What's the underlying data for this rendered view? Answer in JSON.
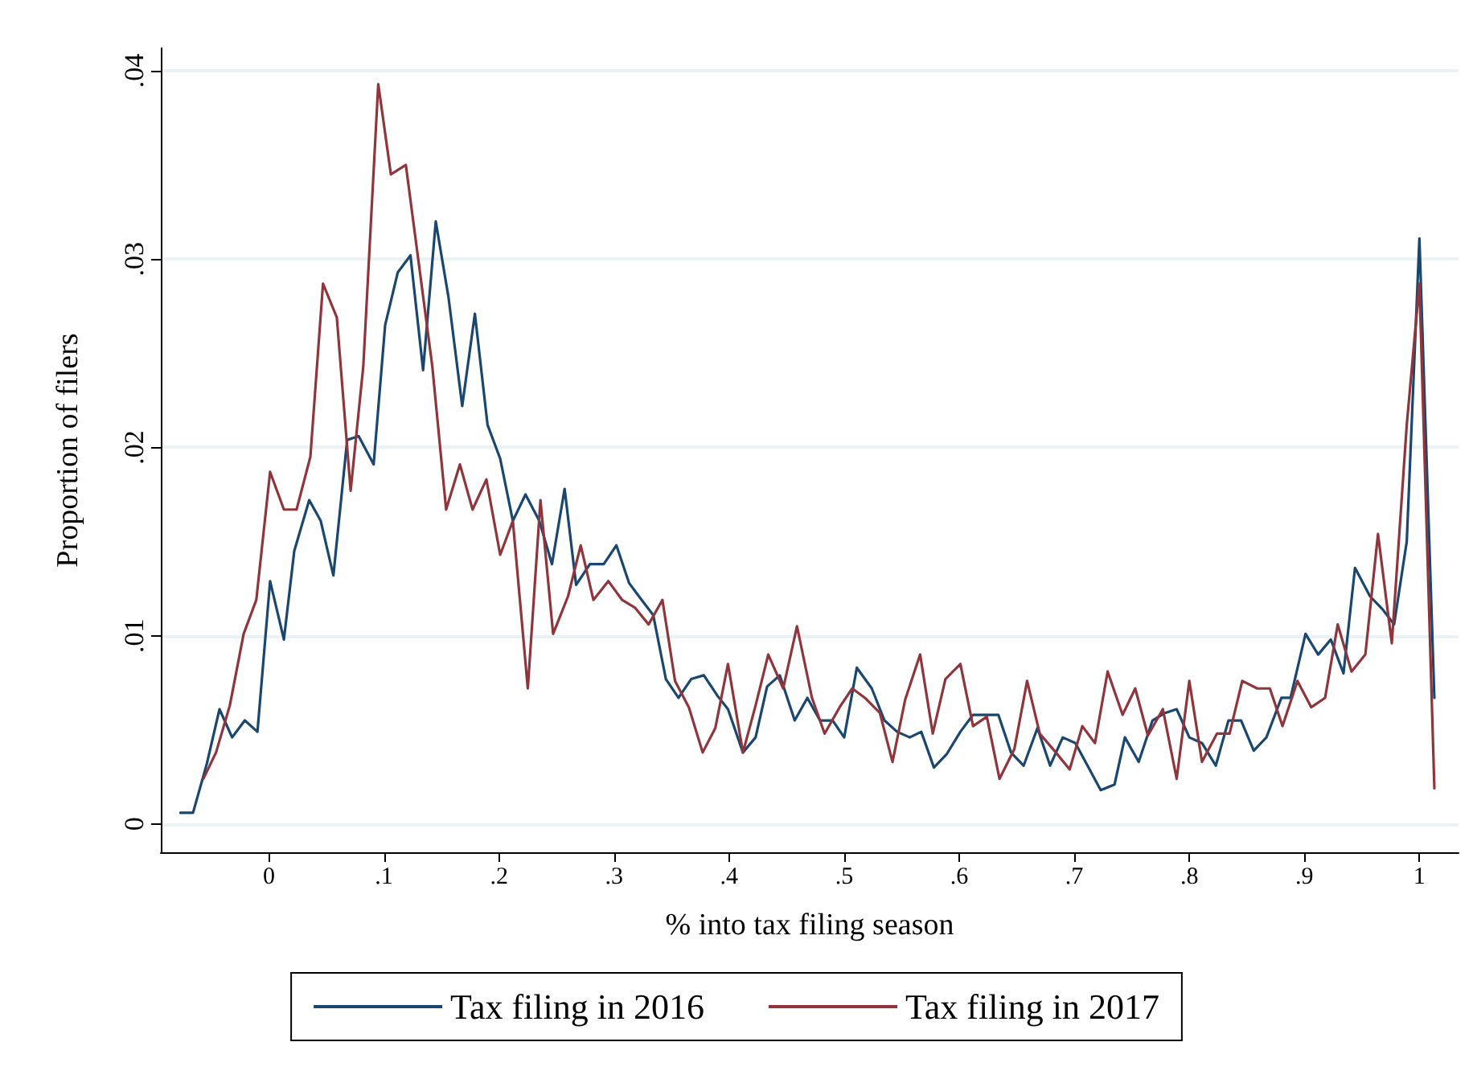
{
  "chart_data": {
    "type": "line",
    "xlabel": "% into tax filing season",
    "ylabel": "Proportion of filers",
    "xlim": [
      -0.094,
      1.034
    ],
    "xticks": [
      {
        "value": 0,
        "label": "0"
      },
      {
        "value": 0.1,
        "label": ".1"
      },
      {
        "value": 0.2,
        "label": ".2"
      },
      {
        "value": 0.3,
        "label": ".3"
      },
      {
        "value": 0.4,
        "label": ".4"
      },
      {
        "value": 0.5,
        "label": ".5"
      },
      {
        "value": 0.6,
        "label": ".6"
      },
      {
        "value": 0.7,
        "label": ".7"
      },
      {
        "value": 0.8,
        "label": ".8"
      },
      {
        "value": 0.9,
        "label": ".9"
      },
      {
        "value": 1,
        "label": "1"
      }
    ],
    "ylim": [
      -0.0015,
      0.0412
    ],
    "yticks": [
      {
        "value": 0,
        "label": "0"
      },
      {
        "value": 0.01,
        "label": ".01"
      },
      {
        "value": 0.02,
        "label": ".02"
      },
      {
        "value": 0.03,
        "label": ".03"
      },
      {
        "value": 0.04,
        "label": ".04"
      }
    ],
    "grid": "y",
    "legend": "bottom",
    "marker": "none",
    "line_style": "solid",
    "series": [
      {
        "name": "Tax filing in 2016",
        "color": "#1a476f",
        "x": [
          -0.077,
          -0.066,
          -0.054,
          -0.043,
          -0.032,
          -0.021,
          -0.01,
          0.001,
          0.013,
          0.022,
          0.035,
          0.045,
          0.056,
          0.068,
          0.078,
          0.091,
          0.101,
          0.112,
          0.123,
          0.134,
          0.145,
          0.156,
          0.168,
          0.179,
          0.19,
          0.201,
          0.212,
          0.223,
          0.235,
          0.246,
          0.257,
          0.267,
          0.279,
          0.291,
          0.302,
          0.313,
          0.324,
          0.334,
          0.345,
          0.356,
          0.367,
          0.378,
          0.39,
          0.399,
          0.412,
          0.423,
          0.433,
          0.444,
          0.457,
          0.468,
          0.479,
          0.49,
          0.5,
          0.511,
          0.524,
          0.535,
          0.546,
          0.557,
          0.567,
          0.578,
          0.589,
          0.601,
          0.612,
          0.623,
          0.634,
          0.645,
          0.656,
          0.668,
          0.679,
          0.69,
          0.701,
          0.723,
          0.735,
          0.744,
          0.756,
          0.768,
          0.779,
          0.789,
          0.8,
          0.811,
          0.823,
          0.834,
          0.845,
          0.856,
          0.867,
          0.88,
          0.888,
          0.901,
          0.912,
          0.923,
          0.934,
          0.944,
          0.957,
          0.968,
          0.978,
          0.989,
          1.0,
          1.013
        ],
        "values": [
          0.0006,
          0.0006,
          0.0032,
          0.0061,
          0.0046,
          0.0055,
          0.0049,
          0.0129,
          0.0098,
          0.0145,
          0.0172,
          0.0161,
          0.0132,
          0.0204,
          0.0206,
          0.0191,
          0.0265,
          0.0293,
          0.0302,
          0.0241,
          0.032,
          0.028,
          0.0222,
          0.0271,
          0.0212,
          0.0194,
          0.0161,
          0.0175,
          0.0161,
          0.0138,
          0.0178,
          0.0127,
          0.0138,
          0.0138,
          0.0148,
          0.0128,
          0.0119,
          0.0111,
          0.0077,
          0.0067,
          0.0077,
          0.0079,
          0.0068,
          0.0061,
          0.0038,
          0.0046,
          0.0073,
          0.0079,
          0.0055,
          0.0067,
          0.0055,
          0.0055,
          0.0046,
          0.0083,
          0.0072,
          0.0055,
          0.0049,
          0.0046,
          0.0049,
          0.003,
          0.0037,
          0.0049,
          0.0058,
          0.0058,
          0.0058,
          0.0038,
          0.0031,
          0.0051,
          0.0031,
          0.0046,
          0.0043,
          0.0018,
          0.0021,
          0.0046,
          0.0033,
          0.0055,
          0.0059,
          0.0061,
          0.0046,
          0.0043,
          0.0031,
          0.0055,
          0.0055,
          0.0039,
          0.0046,
          0.0067,
          0.0067,
          0.0101,
          0.009,
          0.0098,
          0.008,
          0.0136,
          0.0121,
          0.0114,
          0.0106,
          0.015,
          0.0311,
          0.0067
        ]
      },
      {
        "name": "Tax filing in 2017",
        "color": "#90353b",
        "x": [
          -0.057,
          -0.046,
          -0.034,
          -0.022,
          -0.011,
          0.001,
          0.013,
          0.024,
          0.036,
          0.047,
          0.059,
          0.071,
          0.082,
          0.095,
          0.106,
          0.119,
          0.142,
          0.154,
          0.166,
          0.177,
          0.189,
          0.201,
          0.212,
          0.225,
          0.236,
          0.247,
          0.26,
          0.271,
          0.282,
          0.295,
          0.307,
          0.318,
          0.33,
          0.342,
          0.353,
          0.365,
          0.377,
          0.388,
          0.399,
          0.412,
          0.423,
          0.434,
          0.447,
          0.459,
          0.472,
          0.483,
          0.496,
          0.507,
          0.518,
          0.531,
          0.542,
          0.553,
          0.566,
          0.577,
          0.588,
          0.601,
          0.612,
          0.624,
          0.635,
          0.648,
          0.659,
          0.67,
          0.684,
          0.696,
          0.707,
          0.718,
          0.729,
          0.742,
          0.753,
          0.764,
          0.777,
          0.789,
          0.8,
          0.811,
          0.824,
          0.835,
          0.846,
          0.859,
          0.87,
          0.881,
          0.894,
          0.906,
          0.918,
          0.929,
          0.941,
          0.953,
          0.964,
          0.976,
          0.989,
          1.0,
          1.013
        ],
        "values": [
          0.0024,
          0.0038,
          0.0063,
          0.0101,
          0.0119,
          0.0187,
          0.0167,
          0.0167,
          0.0195,
          0.0287,
          0.0269,
          0.0177,
          0.0243,
          0.0393,
          0.0345,
          0.035,
          0.0243,
          0.0167,
          0.0191,
          0.0167,
          0.0183,
          0.0143,
          0.0161,
          0.0072,
          0.0172,
          0.0101,
          0.0121,
          0.0148,
          0.0119,
          0.0129,
          0.0119,
          0.0115,
          0.0106,
          0.0119,
          0.0076,
          0.0062,
          0.0038,
          0.0051,
          0.0085,
          0.0038,
          0.0063,
          0.009,
          0.0072,
          0.0105,
          0.0067,
          0.0048,
          0.0062,
          0.0072,
          0.0067,
          0.0059,
          0.0033,
          0.0066,
          0.009,
          0.0048,
          0.0077,
          0.0085,
          0.0052,
          0.0057,
          0.0024,
          0.004,
          0.0076,
          0.0048,
          0.0038,
          0.0029,
          0.0052,
          0.0043,
          0.0081,
          0.0058,
          0.0072,
          0.0047,
          0.0061,
          0.0024,
          0.0076,
          0.0033,
          0.0048,
          0.0048,
          0.0076,
          0.0072,
          0.0072,
          0.0052,
          0.0076,
          0.0062,
          0.0067,
          0.0106,
          0.0081,
          0.009,
          0.0154,
          0.0096,
          0.0212,
          0.0287,
          0.0019
        ]
      }
    ]
  }
}
